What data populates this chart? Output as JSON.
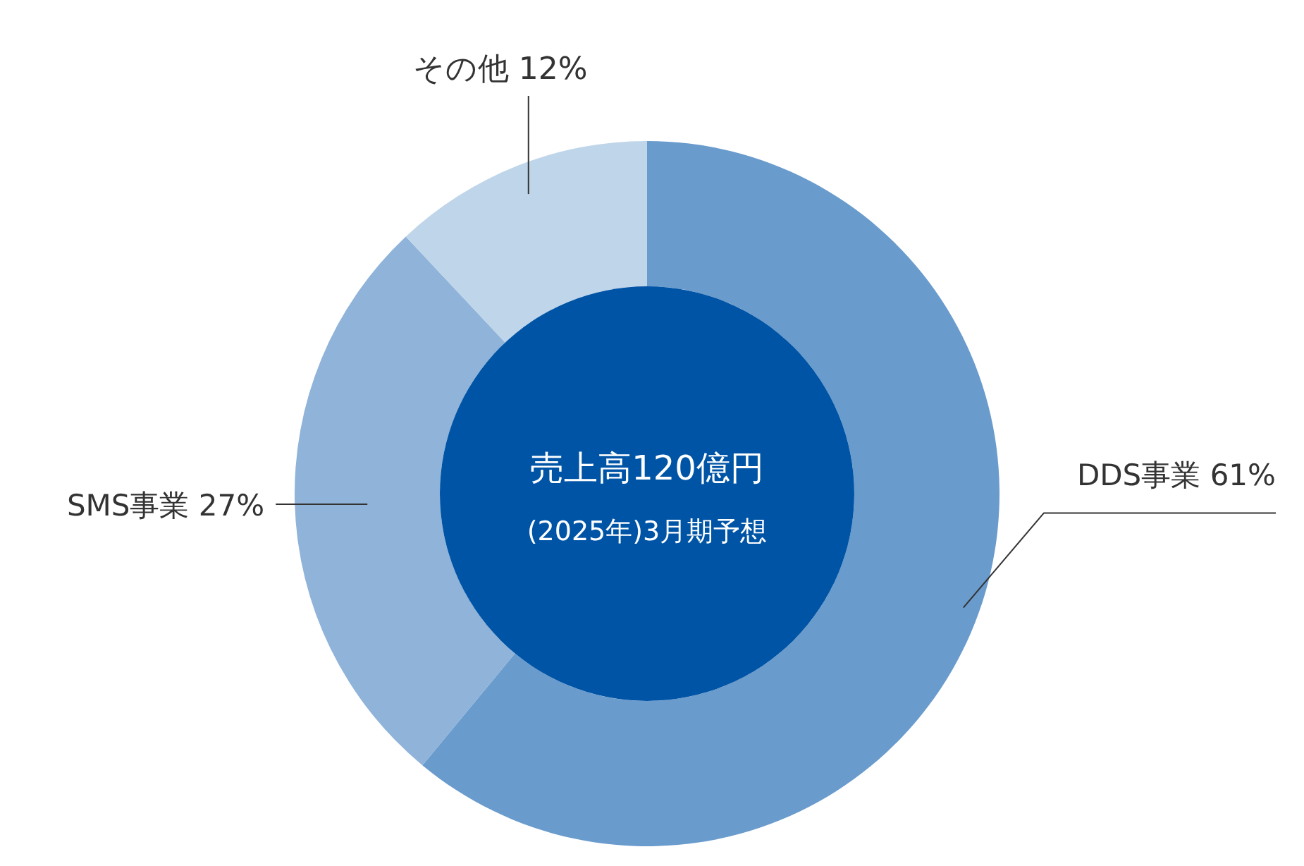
{
  "chart_data": {
    "type": "donut",
    "title": "売上高120億円",
    "subtitle": "(2025年)3月期予想",
    "categories": [
      "DDS事業",
      "SMS事業",
      "その他"
    ],
    "values": [
      61,
      27,
      12
    ],
    "value_labels": [
      "61%",
      "27%",
      "12%"
    ],
    "colors": [
      "#6a9bcd",
      "#8fb3d9",
      "#bfd5ea"
    ],
    "legend": false
  }
}
